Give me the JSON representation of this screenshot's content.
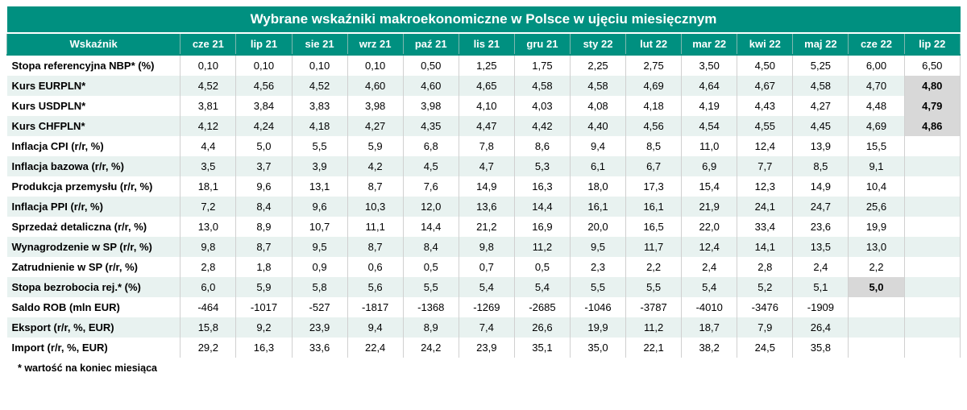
{
  "title": "Wybrane wskaźniki makroekonomiczne w Polsce w ujęciu miesięcznym",
  "corner_label": "Wskaźnik",
  "footnote": "* wartość na koniec miesiąca",
  "colors": {
    "header_bg": "#009080",
    "header_fg": "#ffffff",
    "stripe_even": "#e8f2f0",
    "stripe_odd": "#ffffff",
    "highlight_bg": "#d8d8d8",
    "border": "#d0d0d0"
  },
  "months": [
    "cze 21",
    "lip 21",
    "sie 21",
    "wrz 21",
    "paź 21",
    "lis 21",
    "gru 21",
    "sty 22",
    "lut 22",
    "mar 22",
    "kwi 22",
    "maj 22",
    "cze 22",
    "lip 22"
  ],
  "rows": [
    {
      "label": "Stopa referencyjna NBP* (%)",
      "vals": [
        "0,10",
        "0,10",
        "0,10",
        "0,10",
        "0,50",
        "1,25",
        "1,75",
        "2,25",
        "2,75",
        "3,50",
        "4,50",
        "5,25",
        "6,00",
        "6,50"
      ],
      "hl": []
    },
    {
      "label": "Kurs EURPLN*",
      "vals": [
        "4,52",
        "4,56",
        "4,52",
        "4,60",
        "4,60",
        "4,65",
        "4,58",
        "4,58",
        "4,69",
        "4,64",
        "4,67",
        "4,58",
        "4,70",
        "4,80"
      ],
      "hl": [
        13
      ]
    },
    {
      "label": "Kurs USDPLN*",
      "vals": [
        "3,81",
        "3,84",
        "3,83",
        "3,98",
        "3,98",
        "4,10",
        "4,03",
        "4,08",
        "4,18",
        "4,19",
        "4,43",
        "4,27",
        "4,48",
        "4,79"
      ],
      "hl": [
        13
      ]
    },
    {
      "label": "Kurs CHFPLN*",
      "vals": [
        "4,12",
        "4,24",
        "4,18",
        "4,27",
        "4,35",
        "4,47",
        "4,42",
        "4,40",
        "4,56",
        "4,54",
        "4,55",
        "4,45",
        "4,69",
        "4,86"
      ],
      "hl": [
        13
      ]
    },
    {
      "label": "Inflacja CPI (r/r, %)",
      "vals": [
        "4,4",
        "5,0",
        "5,5",
        "5,9",
        "6,8",
        "7,8",
        "8,6",
        "9,4",
        "8,5",
        "11,0",
        "12,4",
        "13,9",
        "15,5",
        ""
      ],
      "hl": []
    },
    {
      "label": "Inflacja bazowa (r/r, %)",
      "vals": [
        "3,5",
        "3,7",
        "3,9",
        "4,2",
        "4,5",
        "4,7",
        "5,3",
        "6,1",
        "6,7",
        "6,9",
        "7,7",
        "8,5",
        "9,1",
        ""
      ],
      "hl": []
    },
    {
      "label": "Produkcja przemysłu (r/r, %)",
      "vals": [
        "18,1",
        "9,6",
        "13,1",
        "8,7",
        "7,6",
        "14,9",
        "16,3",
        "18,0",
        "17,3",
        "15,4",
        "12,3",
        "14,9",
        "10,4",
        ""
      ],
      "hl": []
    },
    {
      "label": "Inflacja PPI (r/r, %)",
      "vals": [
        "7,2",
        "8,4",
        "9,6",
        "10,3",
        "12,0",
        "13,6",
        "14,4",
        "16,1",
        "16,1",
        "21,9",
        "24,1",
        "24,7",
        "25,6",
        ""
      ],
      "hl": []
    },
    {
      "label": "Sprzedaż detaliczna (r/r, %)",
      "vals": [
        "13,0",
        "8,9",
        "10,7",
        "11,1",
        "14,4",
        "21,2",
        "16,9",
        "20,0",
        "16,5",
        "22,0",
        "33,4",
        "23,6",
        "19,9",
        ""
      ],
      "hl": []
    },
    {
      "label": "Wynagrodzenie w SP (r/r, %)",
      "vals": [
        "9,8",
        "8,7",
        "9,5",
        "8,7",
        "8,4",
        "9,8",
        "11,2",
        "9,5",
        "11,7",
        "12,4",
        "14,1",
        "13,5",
        "13,0",
        ""
      ],
      "hl": []
    },
    {
      "label": "Zatrudnienie w SP (r/r, %)",
      "vals": [
        "2,8",
        "1,8",
        "0,9",
        "0,6",
        "0,5",
        "0,7",
        "0,5",
        "2,3",
        "2,2",
        "2,4",
        "2,8",
        "2,4",
        "2,2",
        ""
      ],
      "hl": []
    },
    {
      "label": "Stopa bezrobocia rej.* (%)",
      "vals": [
        "6,0",
        "5,9",
        "5,8",
        "5,6",
        "5,5",
        "5,4",
        "5,4",
        "5,5",
        "5,5",
        "5,4",
        "5,2",
        "5,1",
        "5,0",
        ""
      ],
      "hl": [
        12
      ]
    },
    {
      "label": "Saldo ROB (mln EUR)",
      "vals": [
        "-464",
        "-1017",
        "-527",
        "-1817",
        "-1368",
        "-1269",
        "-2685",
        "-1046",
        "-3787",
        "-4010",
        "-3476",
        "-1909",
        "",
        ""
      ],
      "hl": []
    },
    {
      "label": "Eksport (r/r, %, EUR)",
      "vals": [
        "15,8",
        "9,2",
        "23,9",
        "9,4",
        "8,9",
        "7,4",
        "26,6",
        "19,9",
        "11,2",
        "18,7",
        "7,9",
        "26,4",
        "",
        ""
      ],
      "hl": []
    },
    {
      "label": "Import (r/r, %, EUR)",
      "vals": [
        "29,2",
        "16,3",
        "33,6",
        "22,4",
        "24,2",
        "23,9",
        "35,1",
        "35,0",
        "22,1",
        "38,2",
        "24,5",
        "35,8",
        "",
        ""
      ],
      "hl": []
    }
  ]
}
